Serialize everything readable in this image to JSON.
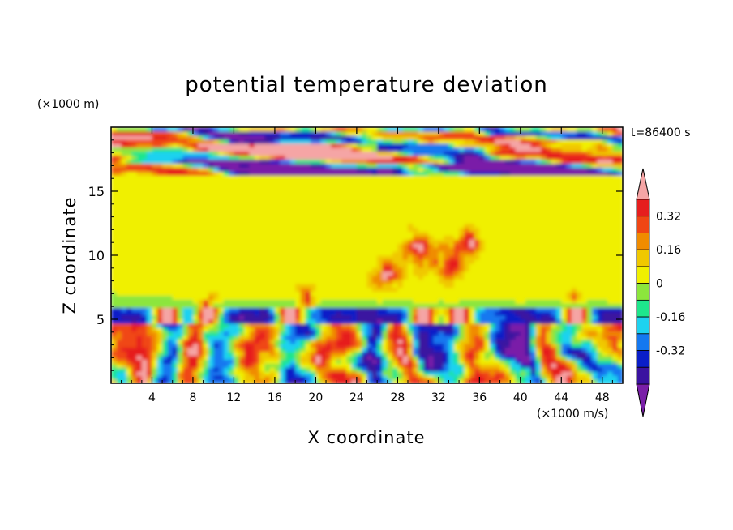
{
  "chart_data": {
    "type": "heatmap",
    "title": "potential temperature deviation",
    "xlabel": "X coordinate",
    "ylabel": "Z coordinate",
    "x_unit": "(×1000 m/s)",
    "y_unit": "(×1000 m)",
    "time_label": "t=86400 s",
    "xlim": [
      0,
      50
    ],
    "ylim": [
      0,
      20
    ],
    "x_ticks": [
      4,
      8,
      12,
      16,
      20,
      24,
      28,
      32,
      36,
      40,
      44,
      48
    ],
    "y_ticks": [
      5,
      10,
      15
    ],
    "colorbar": {
      "levels": [
        -0.48,
        -0.4,
        -0.32,
        -0.24,
        -0.16,
        -0.08,
        0,
        0.08,
        0.16,
        0.24,
        0.32,
        0.4
      ],
      "colors": [
        "#7a1fa8",
        "#3a12a0",
        "#0a1ec8",
        "#1478f0",
        "#1ed2f0",
        "#1ee68c",
        "#8ce63c",
        "#f0f000",
        "#f0c800",
        "#f08c00",
        "#f04614",
        "#e61e1e",
        "#f5a5a5"
      ],
      "tick_labels": [
        "0.32",
        "0.16",
        "0",
        "-0.16",
        "-0.32"
      ],
      "tick_values": [
        0.32,
        0.16,
        0,
        -0.16,
        -0.32
      ],
      "extend": "both"
    }
  }
}
